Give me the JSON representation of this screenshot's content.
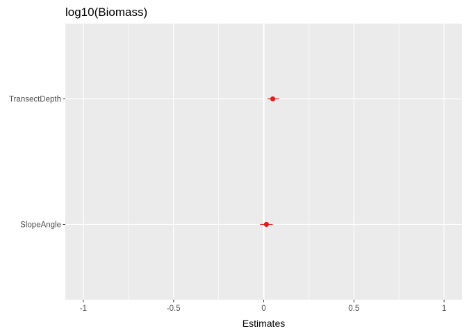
{
  "chart_data": {
    "type": "scatter",
    "title": "log10(Biomass)",
    "xlabel": "Estimates",
    "ylabel": "",
    "xlim": [
      -1.1,
      1.1
    ],
    "x_ticks": [
      -1,
      -0.5,
      0,
      0.5,
      1
    ],
    "x_tick_labels": [
      "-1",
      "-0.5",
      "0",
      "0.5",
      "1"
    ],
    "x_minor_ticks": [
      -0.75,
      -0.25,
      0.25,
      0.75
    ],
    "categories": [
      "TransectDepth",
      "SlopeAngle"
    ],
    "series": [
      {
        "color": "#e41a1c",
        "points": [
          {
            "category": "TransectDepth",
            "estimate": 0.05,
            "ci_low": 0.02,
            "ci_high": 0.085
          },
          {
            "category": "SlopeAngle",
            "estimate": 0.015,
            "ci_low": -0.02,
            "ci_high": 0.05
          }
        ]
      }
    ],
    "reference_line": {
      "x": 0,
      "color": "#ffffff"
    },
    "grid": true,
    "legend": "none",
    "panel_background": "#ebebeb"
  }
}
